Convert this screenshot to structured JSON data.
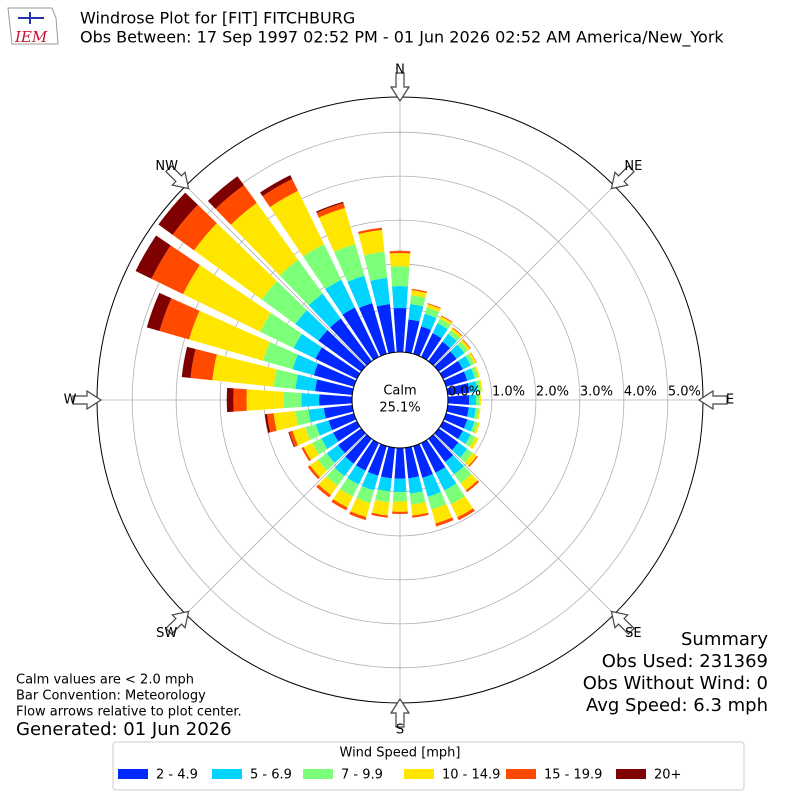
{
  "chart_data": {
    "type": "windrose",
    "title": "Windrose Plot for [FIT] FITCHBURG",
    "subtitle": "Obs Between: 17 Sep 1997 02:52 PM - 01 Jun 2026 02:52 AM America/New_York",
    "logo_text": "IEM",
    "x": [
      0,
      10,
      20,
      30,
      40,
      50,
      60,
      70,
      80,
      90,
      100,
      110,
      120,
      130,
      140,
      150,
      160,
      170,
      180,
      190,
      200,
      210,
      220,
      230,
      240,
      250,
      260,
      270,
      280,
      290,
      300,
      310,
      320,
      330,
      340,
      350
    ],
    "compass_labels": [
      "N",
      "NE",
      "E",
      "SE",
      "S",
      "SW",
      "W",
      "NW"
    ],
    "calm": {
      "label": "Calm",
      "value": 25.1,
      "value_label": "25.1%"
    },
    "ylim": [
      0,
      5.8
    ],
    "yticks": [
      {
        "value": 0,
        "label": "0.0%"
      },
      {
        "value": 1,
        "label": "1.0%"
      },
      {
        "value": 2,
        "label": "2.0%"
      },
      {
        "value": 3,
        "label": "3.0%"
      },
      {
        "value": 4,
        "label": "4.0%"
      },
      {
        "value": 5,
        "label": "5.0%"
      }
    ],
    "legend_title": "Wind Speed [mph]",
    "series": [
      {
        "name": "2 - 4.9",
        "color": "#0028ff",
        "values": [
          1.0,
          0.75,
          0.65,
          0.6,
          0.55,
          0.5,
          0.5,
          0.5,
          0.5,
          0.48,
          0.48,
          0.5,
          0.5,
          0.55,
          0.65,
          0.75,
          0.75,
          0.7,
          0.7,
          0.7,
          0.7,
          0.7,
          0.7,
          0.65,
          0.6,
          0.6,
          0.65,
          0.75,
          0.85,
          0.95,
          1.05,
          1.2,
          1.2,
          1.25,
          1.2,
          1.1
        ]
      },
      {
        "name": "5 - 6.9",
        "color": "#00d4ff",
        "values": [
          0.5,
          0.35,
          0.3,
          0.25,
          0.22,
          0.22,
          0.2,
          0.18,
          0.18,
          0.16,
          0.16,
          0.17,
          0.2,
          0.25,
          0.35,
          0.45,
          0.45,
          0.35,
          0.3,
          0.3,
          0.35,
          0.35,
          0.35,
          0.32,
          0.3,
          0.3,
          0.35,
          0.4,
          0.45,
          0.5,
          0.55,
          0.65,
          0.7,
          0.7,
          0.65,
          0.6
        ]
      },
      {
        "name": "7 - 9.9",
        "color": "#7cff79",
        "values": [
          0.45,
          0.2,
          0.15,
          0.12,
          0.1,
          0.1,
          0.09,
          0.08,
          0.08,
          0.07,
          0.07,
          0.08,
          0.12,
          0.15,
          0.25,
          0.35,
          0.3,
          0.25,
          0.22,
          0.25,
          0.3,
          0.3,
          0.27,
          0.25,
          0.23,
          0.25,
          0.3,
          0.4,
          0.5,
          0.7,
          0.85,
          0.95,
          0.95,
          0.9,
          0.75,
          0.6
        ]
      },
      {
        "name": "10 - 14.9",
        "color": "#ffe600",
        "values": [
          0.3,
          0.12,
          0.08,
          0.06,
          0.06,
          0.06,
          0.05,
          0.04,
          0.04,
          0.04,
          0.04,
          0.05,
          0.08,
          0.12,
          0.2,
          0.33,
          0.33,
          0.25,
          0.23,
          0.3,
          0.33,
          0.28,
          0.26,
          0.22,
          0.22,
          0.3,
          0.5,
          0.85,
          1.4,
          1.75,
          1.95,
          1.9,
          1.6,
          1.35,
          0.85,
          0.5
        ]
      },
      {
        "name": "15 - 19.9",
        "color": "#ff4a00",
        "values": [
          0.05,
          0.03,
          0.02,
          0.02,
          0.02,
          0.02,
          0.01,
          0,
          0,
          0,
          0,
          0,
          0,
          0.03,
          0.05,
          0.07,
          0.07,
          0.05,
          0.05,
          0.05,
          0.07,
          0.07,
          0.07,
          0.06,
          0.05,
          0.08,
          0.15,
          0.3,
          0.5,
          0.7,
          0.8,
          0.6,
          0.5,
          0.3,
          0.12,
          0.05
        ]
      },
      {
        "name": "20+",
        "color": "#7f0000",
        "values": [
          0,
          0,
          0,
          0,
          0,
          0,
          0,
          0,
          0,
          0,
          0,
          0,
          0,
          0,
          0,
          0,
          0,
          0,
          0,
          0,
          0,
          0,
          0,
          0,
          0,
          0.02,
          0.05,
          0.15,
          0.2,
          0.3,
          0.4,
          0.4,
          0.25,
          0.1,
          0.03,
          0
        ]
      }
    ],
    "notes": [
      "Calm values are < 2.0 mph",
      "Bar Convention: Meteorology",
      "Flow arrows relative to plot center."
    ],
    "generated": "Generated: 01 Jun 2026",
    "summary": [
      "Summary",
      "Obs Used: 231369",
      "Obs Without Wind: 0",
      "Avg Speed: 6.3 mph"
    ]
  }
}
